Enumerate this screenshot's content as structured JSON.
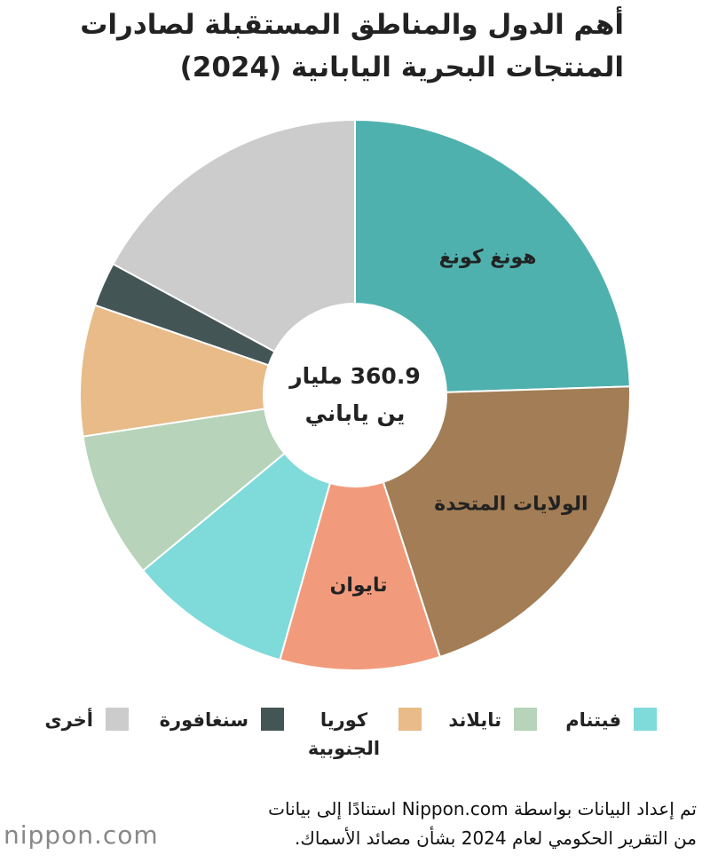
{
  "chart_data": {
    "type": "donut",
    "title": [
      "أهم الدول والمناطق المستقبلة لصادرات",
      "المنتجات البحرية اليابانية (2024)"
    ],
    "center_text": [
      "360.9 مليار",
      "ين ياباني"
    ],
    "categories": [
      "هونغ كونغ",
      "الولايات المتحدة",
      "تايوان",
      "فيتنام",
      "تايلاند",
      "كوريا الجنوبية",
      "سنغافورة",
      "أخرى"
    ],
    "values": [
      24.5,
      20.5,
      9.4,
      9.6,
      8.6,
      7.7,
      2.6,
      17.1
    ],
    "colors": [
      "#4fb1ae",
      "#a27d55",
      "#f29b7c",
      "#7fdada",
      "#b7d3b9",
      "#e8bb88",
      "#445555",
      "#cccccc"
    ],
    "label_position": [
      "inside",
      "inside",
      "inside",
      "legend",
      "legend",
      "legend",
      "legend",
      "legend"
    ]
  },
  "source": [
    "تم إعداد البيانات بواسطة Nippon.com استنادًا إلى بيانات",
    "من التقرير الحكومي لعام 2024 بشأن مصائد الأسماك."
  ],
  "logo": "nippon.com"
}
